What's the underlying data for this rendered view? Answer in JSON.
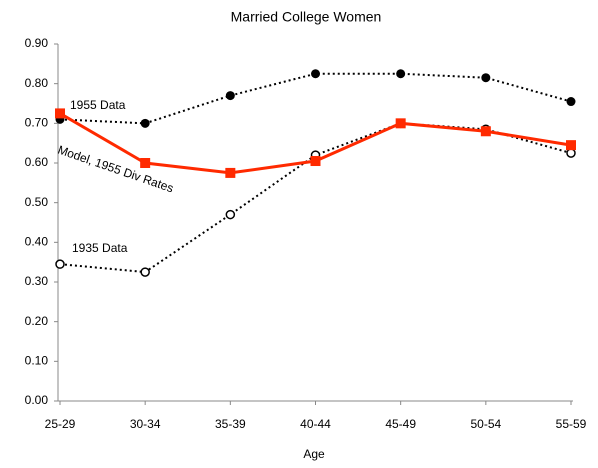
{
  "chart_data": {
    "type": "line",
    "title": "Married College Women",
    "x_label": "Age",
    "categories": [
      "25-29",
      "30-34",
      "35-39",
      "40-44",
      "45-49",
      "50-54",
      "55-59"
    ],
    "series": [
      {
        "name": "1955 Data",
        "color": "#000000",
        "marker": "filled-circle",
        "line_style": "dotted",
        "values": [
          0.71,
          0.7,
          0.77,
          0.825,
          0.825,
          0.815,
          0.755
        ]
      },
      {
        "name": "1935 Data",
        "color": "#000000",
        "marker": "open-circle",
        "line_style": "dotted",
        "values": [
          0.345,
          0.325,
          0.47,
          0.62,
          0.7,
          0.685,
          0.625
        ]
      },
      {
        "name": "Model, 1955 Div Rates",
        "color": "#ff2a00",
        "marker": "square",
        "line_style": "solid",
        "values": [
          0.725,
          0.6,
          0.575,
          0.605,
          0.7,
          0.68,
          0.645
        ]
      }
    ],
    "ylim": [
      0,
      0.9
    ],
    "yticks": [
      {
        "value": 0,
        "label": "0.00"
      },
      {
        "value": 0.1,
        "label": "0.10"
      },
      {
        "value": 0.2,
        "label": "0.20"
      },
      {
        "value": 0.3,
        "label": "0.30"
      },
      {
        "value": 0.4,
        "label": "0.40"
      },
      {
        "value": 0.5,
        "label": "0.50"
      },
      {
        "value": 0.6,
        "label": "0.60"
      },
      {
        "value": 0.7,
        "label": "0.70"
      },
      {
        "value": 0.8,
        "label": "0.80"
      },
      {
        "value": 0.9,
        "label": "0.90"
      }
    ],
    "grid": false
  }
}
